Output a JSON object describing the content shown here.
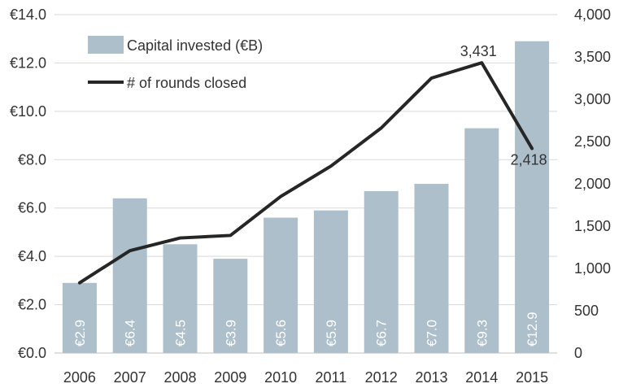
{
  "chart_data": {
    "type": "bar",
    "categories": [
      "2006",
      "2007",
      "2008",
      "2009",
      "2010",
      "2011",
      "2012",
      "2013",
      "2014",
      "2015"
    ],
    "series": [
      {
        "name": "Capital invested (€B)",
        "type": "bar",
        "axis": "left",
        "values": [
          2.9,
          6.4,
          4.5,
          3.9,
          5.6,
          5.9,
          6.7,
          7.0,
          9.3,
          12.9
        ],
        "labels": [
          "€2.9",
          "€6.4",
          "€4.5",
          "€3.9",
          "€5.6",
          "€5.9",
          "€6.7",
          "€7.0",
          "€9.3",
          "€12.9"
        ],
        "color": "#adbfca"
      },
      {
        "name": "# of rounds closed",
        "type": "line",
        "axis": "right",
        "values": [
          830,
          1210,
          1360,
          1390,
          1850,
          2210,
          2660,
          3250,
          3431,
          2418
        ],
        "point_labels": [
          "",
          "",
          "",
          "",
          "",
          "",
          "",
          "",
          "3,431",
          "2,418"
        ],
        "color": "#262626"
      }
    ],
    "y_left": {
      "min": 0,
      "max": 14,
      "ticks": [
        0,
        2,
        4,
        6,
        8,
        10,
        12,
        14
      ],
      "tick_labels": [
        "€0.0",
        "€2.0",
        "€4.0",
        "€6.0",
        "€8.0",
        "€10.0",
        "€12.0",
        "€14.0"
      ]
    },
    "y_right": {
      "min": 0,
      "max": 4000,
      "ticks": [
        0,
        500,
        1000,
        1500,
        2000,
        2500,
        3000,
        3500,
        4000
      ],
      "tick_labels": [
        "0",
        "500",
        "1,000",
        "1,500",
        "2,000",
        "2,500",
        "3,000",
        "3,500",
        "4,000"
      ]
    },
    "grid": true,
    "legend_position": "top-left"
  }
}
